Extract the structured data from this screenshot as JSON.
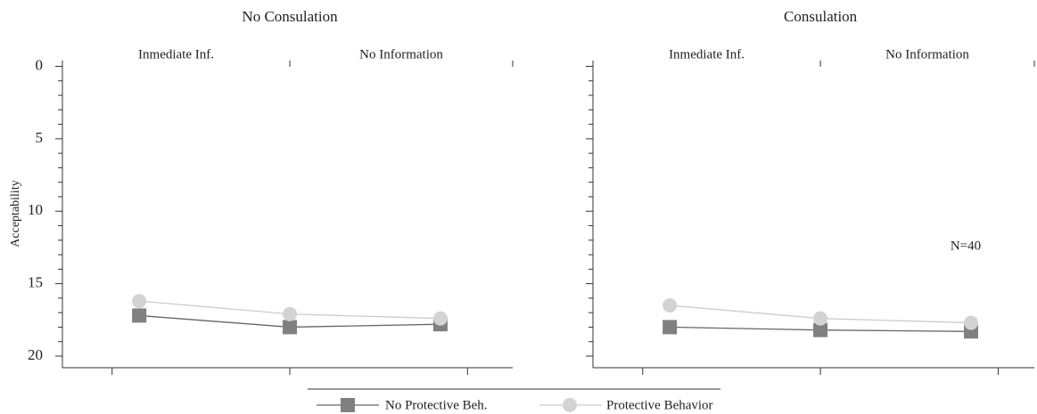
{
  "chart_data": [
    {
      "type": "line",
      "title": "No Consulation",
      "subtitles": [
        "Inmediate Inf.",
        "No Information"
      ],
      "y_label": "Acceptability",
      "y_inverted": true,
      "x": [
        0,
        1,
        2
      ],
      "xlim": [
        -0.51,
        2.48
      ],
      "xticks": [
        -0.18,
        1,
        2.18
      ],
      "ylim": [
        -0.4,
        20.8
      ],
      "yticks": [
        0,
        5,
        10,
        15,
        20
      ],
      "y_minor_ticks": [
        1,
        2,
        3,
        4,
        6,
        7,
        8,
        9,
        11,
        12,
        13,
        14,
        16,
        17,
        18,
        19
      ],
      "show_ytick_labels": true,
      "legend": true,
      "series": [
        {
          "name": "No Protective Beh.",
          "color": "#808080",
          "line_color": "#666666",
          "marker": "square",
          "values": [
            17.2,
            18.0,
            17.8
          ]
        },
        {
          "name": "Protective Behavior",
          "color": "#d3d3d3",
          "line_color": "#cccccc",
          "marker": "circle",
          "values": [
            16.2,
            17.1,
            17.4
          ]
        }
      ]
    },
    {
      "type": "line",
      "title": "Consulation",
      "subtitles": [
        "Inmediate Inf.",
        "No Information"
      ],
      "y_inverted": true,
      "annotation": "N=40",
      "x": [
        0,
        1,
        2
      ],
      "xlim": [
        -0.51,
        2.42
      ],
      "xticks": [
        -0.18,
        1,
        2.18
      ],
      "ylim": [
        -0.4,
        20.8
      ],
      "yticks": [
        0,
        5,
        10,
        15,
        20
      ],
      "y_minor_ticks": [
        1,
        2,
        3,
        4,
        6,
        7,
        8,
        9,
        11,
        12,
        13,
        14,
        16,
        17,
        18,
        19
      ],
      "show_ytick_labels": false,
      "series": [
        {
          "color": "#808080",
          "line_color": "#666666",
          "marker": "square",
          "values": [
            18.0,
            18.2,
            18.3
          ]
        },
        {
          "color": "#d3d3d3",
          "line_color": "#cccccc",
          "marker": "circle",
          "values": [
            16.5,
            17.4,
            17.7
          ]
        }
      ]
    }
  ]
}
